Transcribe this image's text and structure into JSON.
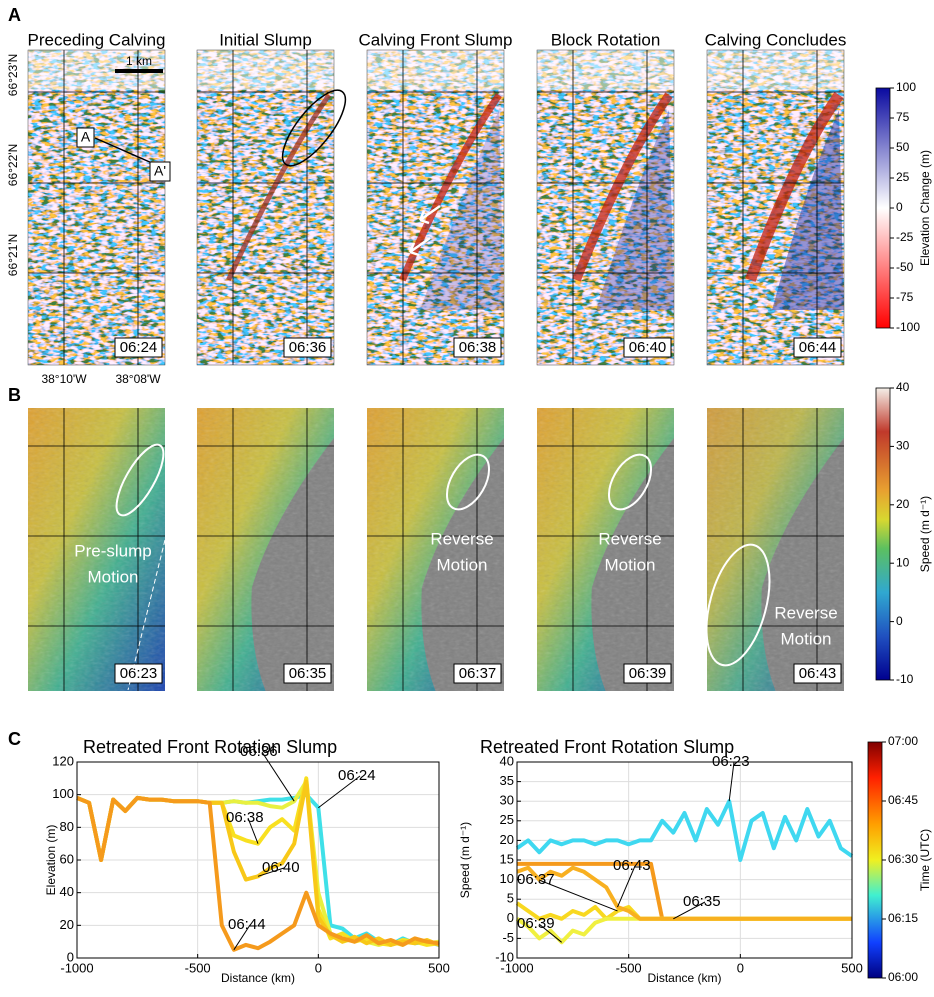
{
  "panel_a": {
    "label": "A",
    "titles": [
      "Preceding Calving",
      "Initial Slump",
      "Calving Front Slump",
      "Block Rotation",
      "Calving Concludes"
    ],
    "times": [
      "06:24",
      "06:36",
      "06:38",
      "06:40",
      "06:44"
    ],
    "lat_labels": [
      "66°23'N",
      "66°22'N",
      "66°21'N"
    ],
    "lon_labels": [
      "38°10'W",
      "38°08'W"
    ],
    "scale_label": "1 km",
    "profile_labels": [
      "A",
      "A'"
    ],
    "colorbar": {
      "label": "Elevation Change (m)",
      "lim": [
        -100,
        100
      ],
      "ticks": [
        100,
        75,
        50,
        25,
        0,
        -25,
        -50,
        -75,
        -100
      ]
    }
  },
  "panel_b": {
    "label": "B",
    "times": [
      "06:23",
      "06:35",
      "06:37",
      "06:39",
      "06:43"
    ],
    "annotations": [
      [
        "Pre-slump",
        "Motion"
      ],
      null,
      [
        "Reverse",
        "Motion"
      ],
      [
        "Reverse",
        "Motion"
      ],
      [
        "Reverse",
        "Motion"
      ]
    ],
    "colorbar": {
      "label": "Speed (m d⁻¹)",
      "lim": [
        -10,
        40
      ],
      "ticks": [
        40,
        30,
        20,
        10,
        0,
        -10
      ]
    }
  },
  "panel_c": {
    "label": "C"
  },
  "time_colorbar": {
    "label": "Time (UTC)",
    "ticks": [
      "07:00",
      "06:45",
      "06:30",
      "06:15",
      "06:00"
    ]
  },
  "chart_data": [
    {
      "type": "line",
      "title": "Retreated Front Rotation Slump",
      "x_label": "Distance (km)",
      "y_label": "Elevation (m)",
      "xlim": [
        -1000,
        500
      ],
      "xticks": [
        -1000,
        -500,
        0,
        500
      ],
      "ylim": [
        0,
        120
      ],
      "yticks": [
        0,
        20,
        40,
        60,
        80,
        100,
        120
      ],
      "grid": true,
      "x": [
        -1000,
        -950,
        -900,
        -850,
        -800,
        -750,
        -700,
        -650,
        -600,
        -550,
        -500,
        -450,
        -400,
        -350,
        -300,
        -250,
        -200,
        -150,
        -100,
        -50,
        0,
        50,
        100,
        150,
        200,
        250,
        300,
        350,
        400,
        450,
        500
      ],
      "series": [
        {
          "name": "06:24",
          "color": "#3fe0e8",
          "values": [
            98,
            95,
            60,
            97,
            90,
            98,
            97,
            97,
            96,
            96,
            96,
            95,
            95,
            96,
            95,
            96,
            97,
            97,
            98,
            100,
            92,
            20,
            18,
            12,
            15,
            10,
            8,
            12,
            9,
            10,
            8
          ]
        },
        {
          "name": "06:36",
          "color": "#e8f040",
          "values": [
            98,
            95,
            60,
            97,
            90,
            98,
            97,
            97,
            96,
            96,
            96,
            95,
            95,
            96,
            95,
            95,
            93,
            92,
            96,
            108,
            40,
            15,
            10,
            12,
            10,
            8,
            10,
            8,
            12,
            9,
            10
          ]
        },
        {
          "name": "06:38",
          "color": "#f8e020",
          "values": [
            98,
            95,
            60,
            97,
            90,
            98,
            97,
            97,
            96,
            96,
            96,
            95,
            95,
            75,
            72,
            70,
            80,
            85,
            78,
            110,
            30,
            12,
            15,
            10,
            12,
            9,
            8,
            11,
            10,
            8,
            9
          ]
        },
        {
          "name": "06:40",
          "color": "#f8c818",
          "values": [
            98,
            95,
            60,
            97,
            90,
            98,
            97,
            97,
            96,
            96,
            96,
            95,
            95,
            65,
            48,
            50,
            55,
            58,
            70,
            108,
            25,
            14,
            10,
            13,
            9,
            12,
            8,
            10,
            9,
            11,
            8
          ]
        },
        {
          "name": "06:44",
          "color": "#f59a1c",
          "values": [
            98,
            95,
            60,
            97,
            90,
            98,
            97,
            97,
            96,
            96,
            96,
            95,
            20,
            5,
            8,
            6,
            10,
            15,
            20,
            40,
            20,
            15,
            12,
            10,
            14,
            9,
            11,
            8,
            12,
            10,
            9
          ]
        }
      ]
    },
    {
      "type": "line",
      "title": "Retreated Front Rotation Slump",
      "x_label": "Distance (km)",
      "y_label": "Speed (m d⁻¹)",
      "xlim": [
        -1000,
        500
      ],
      "xticks": [
        -1000,
        -500,
        0,
        500
      ],
      "ylim": [
        -10,
        40
      ],
      "yticks": [
        -10,
        -5,
        0,
        5,
        10,
        15,
        20,
        25,
        30,
        35,
        40
      ],
      "grid": true,
      "x": [
        -1000,
        -950,
        -900,
        -850,
        -800,
        -750,
        -700,
        -650,
        -600,
        -550,
        -500,
        -450,
        -400,
        -350,
        -300,
        -250,
        -200,
        -150,
        -100,
        -50,
        0,
        50,
        100,
        150,
        200,
        250,
        300,
        350,
        400,
        450,
        500
      ],
      "series": [
        {
          "name": "06:23",
          "color": "#3fd8f0",
          "values": [
            18,
            20,
            17,
            20,
            19,
            20,
            20,
            19,
            20,
            20,
            19,
            20,
            20,
            25,
            22,
            27,
            20,
            28,
            24,
            30,
            15,
            25,
            27,
            18,
            26,
            20,
            28,
            21,
            25,
            18,
            16
          ]
        },
        {
          "name": "06:35",
          "color": "#f59a1c",
          "values": [
            14,
            14,
            14,
            14,
            14,
            14,
            14,
            14,
            14,
            14,
            14,
            14,
            14,
            0,
            0,
            0,
            0,
            0,
            0,
            0,
            0,
            0,
            0,
            0,
            0,
            0,
            0,
            0,
            0,
            0,
            0
          ]
        },
        {
          "name": "06:37",
          "color": "#f8d820",
          "values": [
            4,
            2,
            0,
            1,
            0,
            2,
            1,
            3,
            0,
            2,
            3,
            0,
            0,
            0,
            0,
            0,
            0,
            0,
            0,
            0,
            0,
            0,
            0,
            0,
            0,
            0,
            0,
            0,
            0,
            0,
            0
          ]
        },
        {
          "name": "06:39",
          "color": "#f0f040",
          "values": [
            0,
            -2,
            -5,
            -3,
            -6,
            -3,
            -4,
            -1,
            0,
            0,
            0,
            0,
            0,
            0,
            0,
            0,
            0,
            0,
            0,
            0,
            0,
            0,
            0,
            0,
            0,
            0,
            0,
            0,
            0,
            0,
            0
          ]
        },
        {
          "name": "06:43",
          "color": "#f8b020",
          "values": [
            12,
            13,
            10,
            12,
            11,
            13,
            12,
            10,
            8,
            3,
            2,
            0,
            0,
            0,
            0,
            0,
            0,
            0,
            0,
            0,
            0,
            0,
            0,
            0,
            0,
            0,
            0,
            0,
            0,
            0,
            0
          ]
        }
      ]
    }
  ]
}
